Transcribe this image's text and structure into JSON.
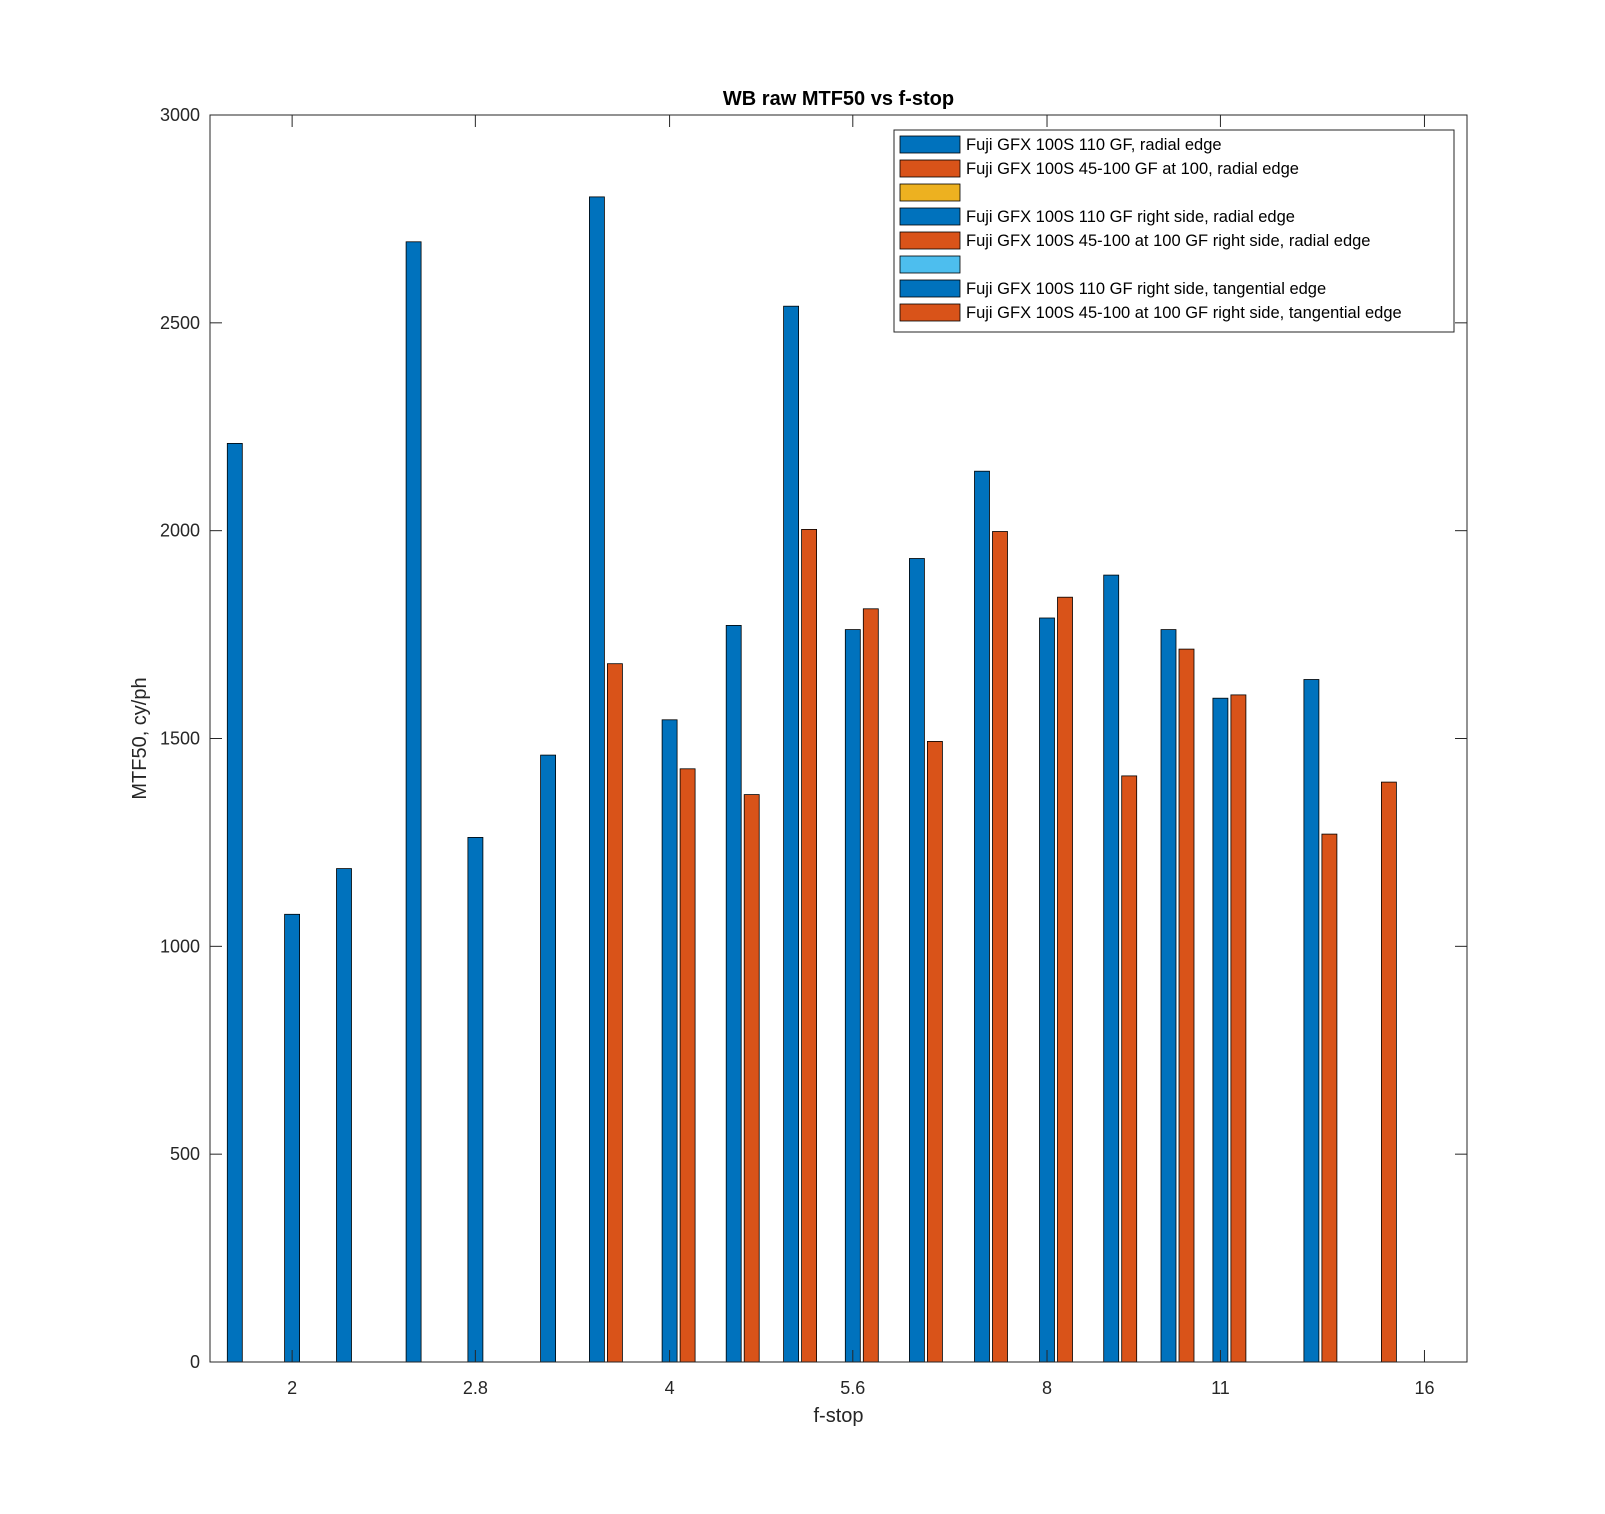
{
  "chart_data": {
    "type": "bar",
    "title": "WB raw MTF50 vs f-stop",
    "xlabel": "f-stop",
    "ylabel": "MTF50, cy/ph",
    "xticks": [
      "2",
      "2.8",
      "4",
      "5.6",
      "8",
      "11",
      "16"
    ],
    "yticks": [
      "0",
      "500",
      "1000",
      "1500",
      "2000",
      "2500",
      "3000"
    ],
    "ylim": [
      0,
      3000
    ],
    "scale": "log2 f-stop axis, tick marks at 2, 2.8, 4, 5.6, 8, 11, 16",
    "legend_position": "top-right, inside axes",
    "series": [
      {
        "name": "Fuji GFX 100S 110 GF, radial edge",
        "color": "#0072BD",
        "points": [
          {
            "x": 1.8,
            "y": 2210
          },
          {
            "x": 2.0,
            "y": 1077
          },
          {
            "x": 2.2,
            "y": 1187
          },
          {
            "x": 2.5,
            "y": 2695
          },
          {
            "x": 2.8,
            "y": 1262
          },
          {
            "x": 3.2,
            "y": 1460
          },
          {
            "x": 3.5,
            "y": 2803
          },
          {
            "x": 4.0,
            "y": 1545
          },
          {
            "x": 4.5,
            "y": 1772
          },
          {
            "x": 5.0,
            "y": 2540
          },
          {
            "x": 5.6,
            "y": 1762
          },
          {
            "x": 6.3,
            "y": 1933
          },
          {
            "x": 7.1,
            "y": 2143
          },
          {
            "x": 8.0,
            "y": 1790
          },
          {
            "x": 9.0,
            "y": 1893
          },
          {
            "x": 10,
            "y": 1762
          },
          {
            "x": 11,
            "y": 1597
          },
          {
            "x": 13,
            "y": 1642
          }
        ]
      },
      {
        "name": "Fuji GFX 100S 45-100 GF at 100, radial edge",
        "color": "#D95319",
        "points": [
          {
            "x": 3.5,
            "y": 1680
          },
          {
            "x": 4.0,
            "y": 1427
          },
          {
            "x": 4.5,
            "y": 1365
          },
          {
            "x": 5.0,
            "y": 2003
          },
          {
            "x": 5.6,
            "y": 1812
          },
          {
            "x": 6.3,
            "y": 1493
          },
          {
            "x": 7.1,
            "y": 1998
          },
          {
            "x": 8.0,
            "y": 1840
          },
          {
            "x": 9.0,
            "y": 1410
          },
          {
            "x": 10,
            "y": 1715
          },
          {
            "x": 11,
            "y": 1605
          },
          {
            "x": 13,
            "y": 1270
          },
          {
            "x": 14.5,
            "y": 1395
          }
        ]
      },
      {
        "name": "",
        "color": "#EDB120",
        "points": []
      },
      {
        "name": "Fuji GFX 100S 110 GF right side, radial edge",
        "color": "#0072BD",
        "points": []
      },
      {
        "name": "Fuji GFX 100S 45-100 at 100 GF right side, radial edge",
        "color": "#D95319",
        "points": []
      },
      {
        "name": "",
        "color": "#4DBEEE",
        "points": []
      },
      {
        "name": "Fuji GFX 100S 110 GF right side, tangential edge",
        "color": "#0072BD",
        "points": []
      },
      {
        "name": "Fuji GFX 100S 45-100 at 100 GF right side, tangential edge",
        "color": "#D95319",
        "points": []
      }
    ]
  }
}
